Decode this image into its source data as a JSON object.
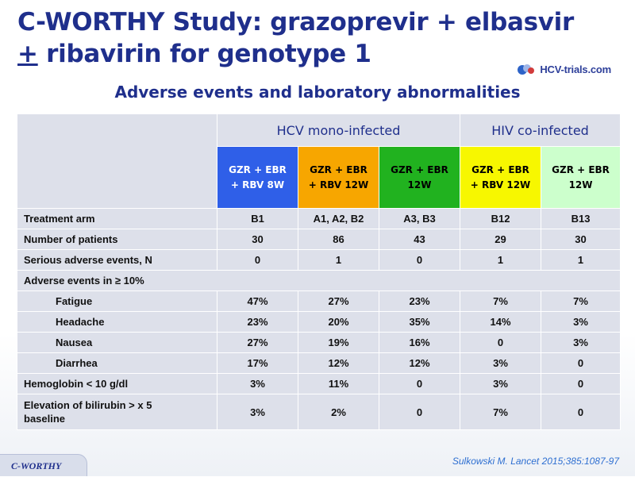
{
  "title": {
    "line1": "C-WORTHY Study: grazoprevir + elbasvir",
    "line2_symbol": "+",
    "line2_rest": " ribavirin for genotype 1"
  },
  "logo": {
    "text": "HCV-trials.com",
    "icon": "hcv-trials-logo-icon"
  },
  "subtitle": "Adverse events and laboratory abnormalities",
  "table": {
    "groups": [
      {
        "label": "HCV mono-infected"
      },
      {
        "label": "HIV co-infected"
      }
    ],
    "arms": [
      {
        "line1": "GZR + EBR",
        "line2": "+ RBV 8W",
        "color": "#2f5fe8"
      },
      {
        "line1": "GZR + EBR",
        "line2": "+ RBV 12W",
        "color": "#f7a600"
      },
      {
        "line1": "GZR + EBR",
        "line2": "12W",
        "color": "#21b21f"
      },
      {
        "line1": "GZR + EBR",
        "line2": "+ RBV 12W",
        "color": "#f7f700"
      },
      {
        "line1": "GZR + EBR",
        "line2": "12W",
        "color": "#ccffcc"
      }
    ],
    "rows": [
      {
        "label": "Treatment arm",
        "values": [
          "B1",
          "A1, A2,  B2",
          "A3, B3",
          "B12",
          "B13"
        ]
      },
      {
        "label": "Number of patients",
        "values": [
          "30",
          "86",
          "43",
          "29",
          "30"
        ]
      },
      {
        "label": "Serious adverse events, N",
        "values": [
          "0",
          "1",
          "0",
          "1",
          "1"
        ]
      },
      {
        "label": "Adverse events in ≥ 10%",
        "values": [
          "",
          "",
          "",
          "",
          ""
        ]
      },
      {
        "label": "Fatigue",
        "values": [
          "47%",
          "27%",
          "23%",
          "7%",
          "7%"
        ]
      },
      {
        "label": "Headache",
        "values": [
          "23%",
          "20%",
          "35%",
          "14%",
          "3%"
        ]
      },
      {
        "label": "Nausea",
        "values": [
          "27%",
          "19%",
          "16%",
          "0",
          "3%"
        ]
      },
      {
        "label": "Diarrhea",
        "values": [
          "17%",
          "12%",
          "12%",
          "3%",
          "0"
        ]
      },
      {
        "label": "Hemoglobin < 10 g/dl",
        "values": [
          "3%",
          "11%",
          "0",
          "3%",
          "0"
        ]
      },
      {
        "label_line1": "Elevation of bilirubin > x 5",
        "label_line2": "baseline",
        "values": [
          "3%",
          "2%",
          "0",
          "7%",
          "0"
        ]
      }
    ]
  },
  "footer": {
    "study_tag": "C-WORTHY",
    "reference": "Sulkowski M. Lancet 2015;385:1087-97"
  }
}
